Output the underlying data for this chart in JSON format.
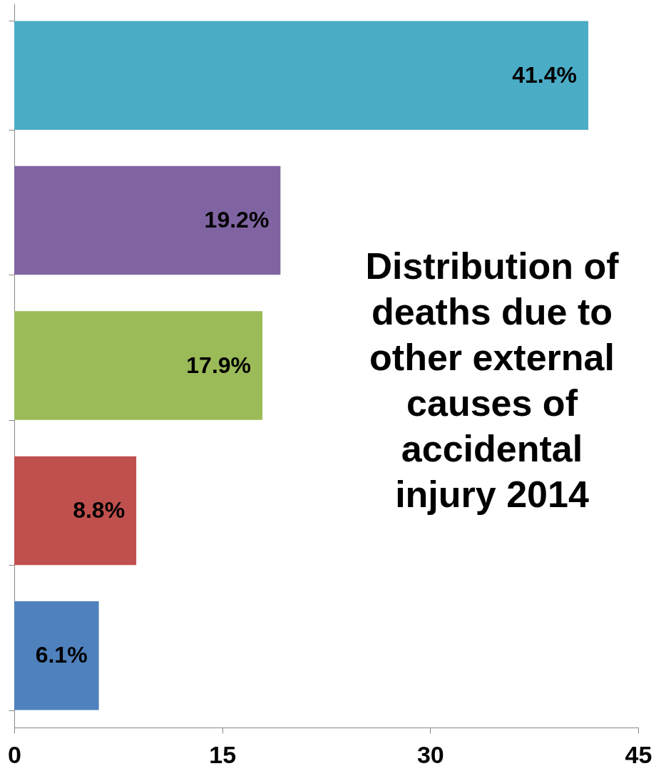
{
  "chart_data": {
    "type": "bar",
    "orientation": "horizontal",
    "title": "Distribution of deaths due to other external causes of accidental injury 2014",
    "categories": [
      null,
      null,
      null,
      null,
      null
    ],
    "values": [
      41.4,
      19.2,
      17.9,
      8.8,
      6.1
    ],
    "colors": [
      "#4bacc6",
      "#8064a2",
      "#9bbb59",
      "#c0504d",
      "#4f81bd"
    ],
    "value_labels": [
      "41.4%",
      "19.2%",
      "17.9%",
      "8.8%",
      "6.1%"
    ],
    "xlim": [
      0,
      45
    ],
    "xticks": [
      0,
      15,
      30,
      45
    ],
    "grid": false
  }
}
